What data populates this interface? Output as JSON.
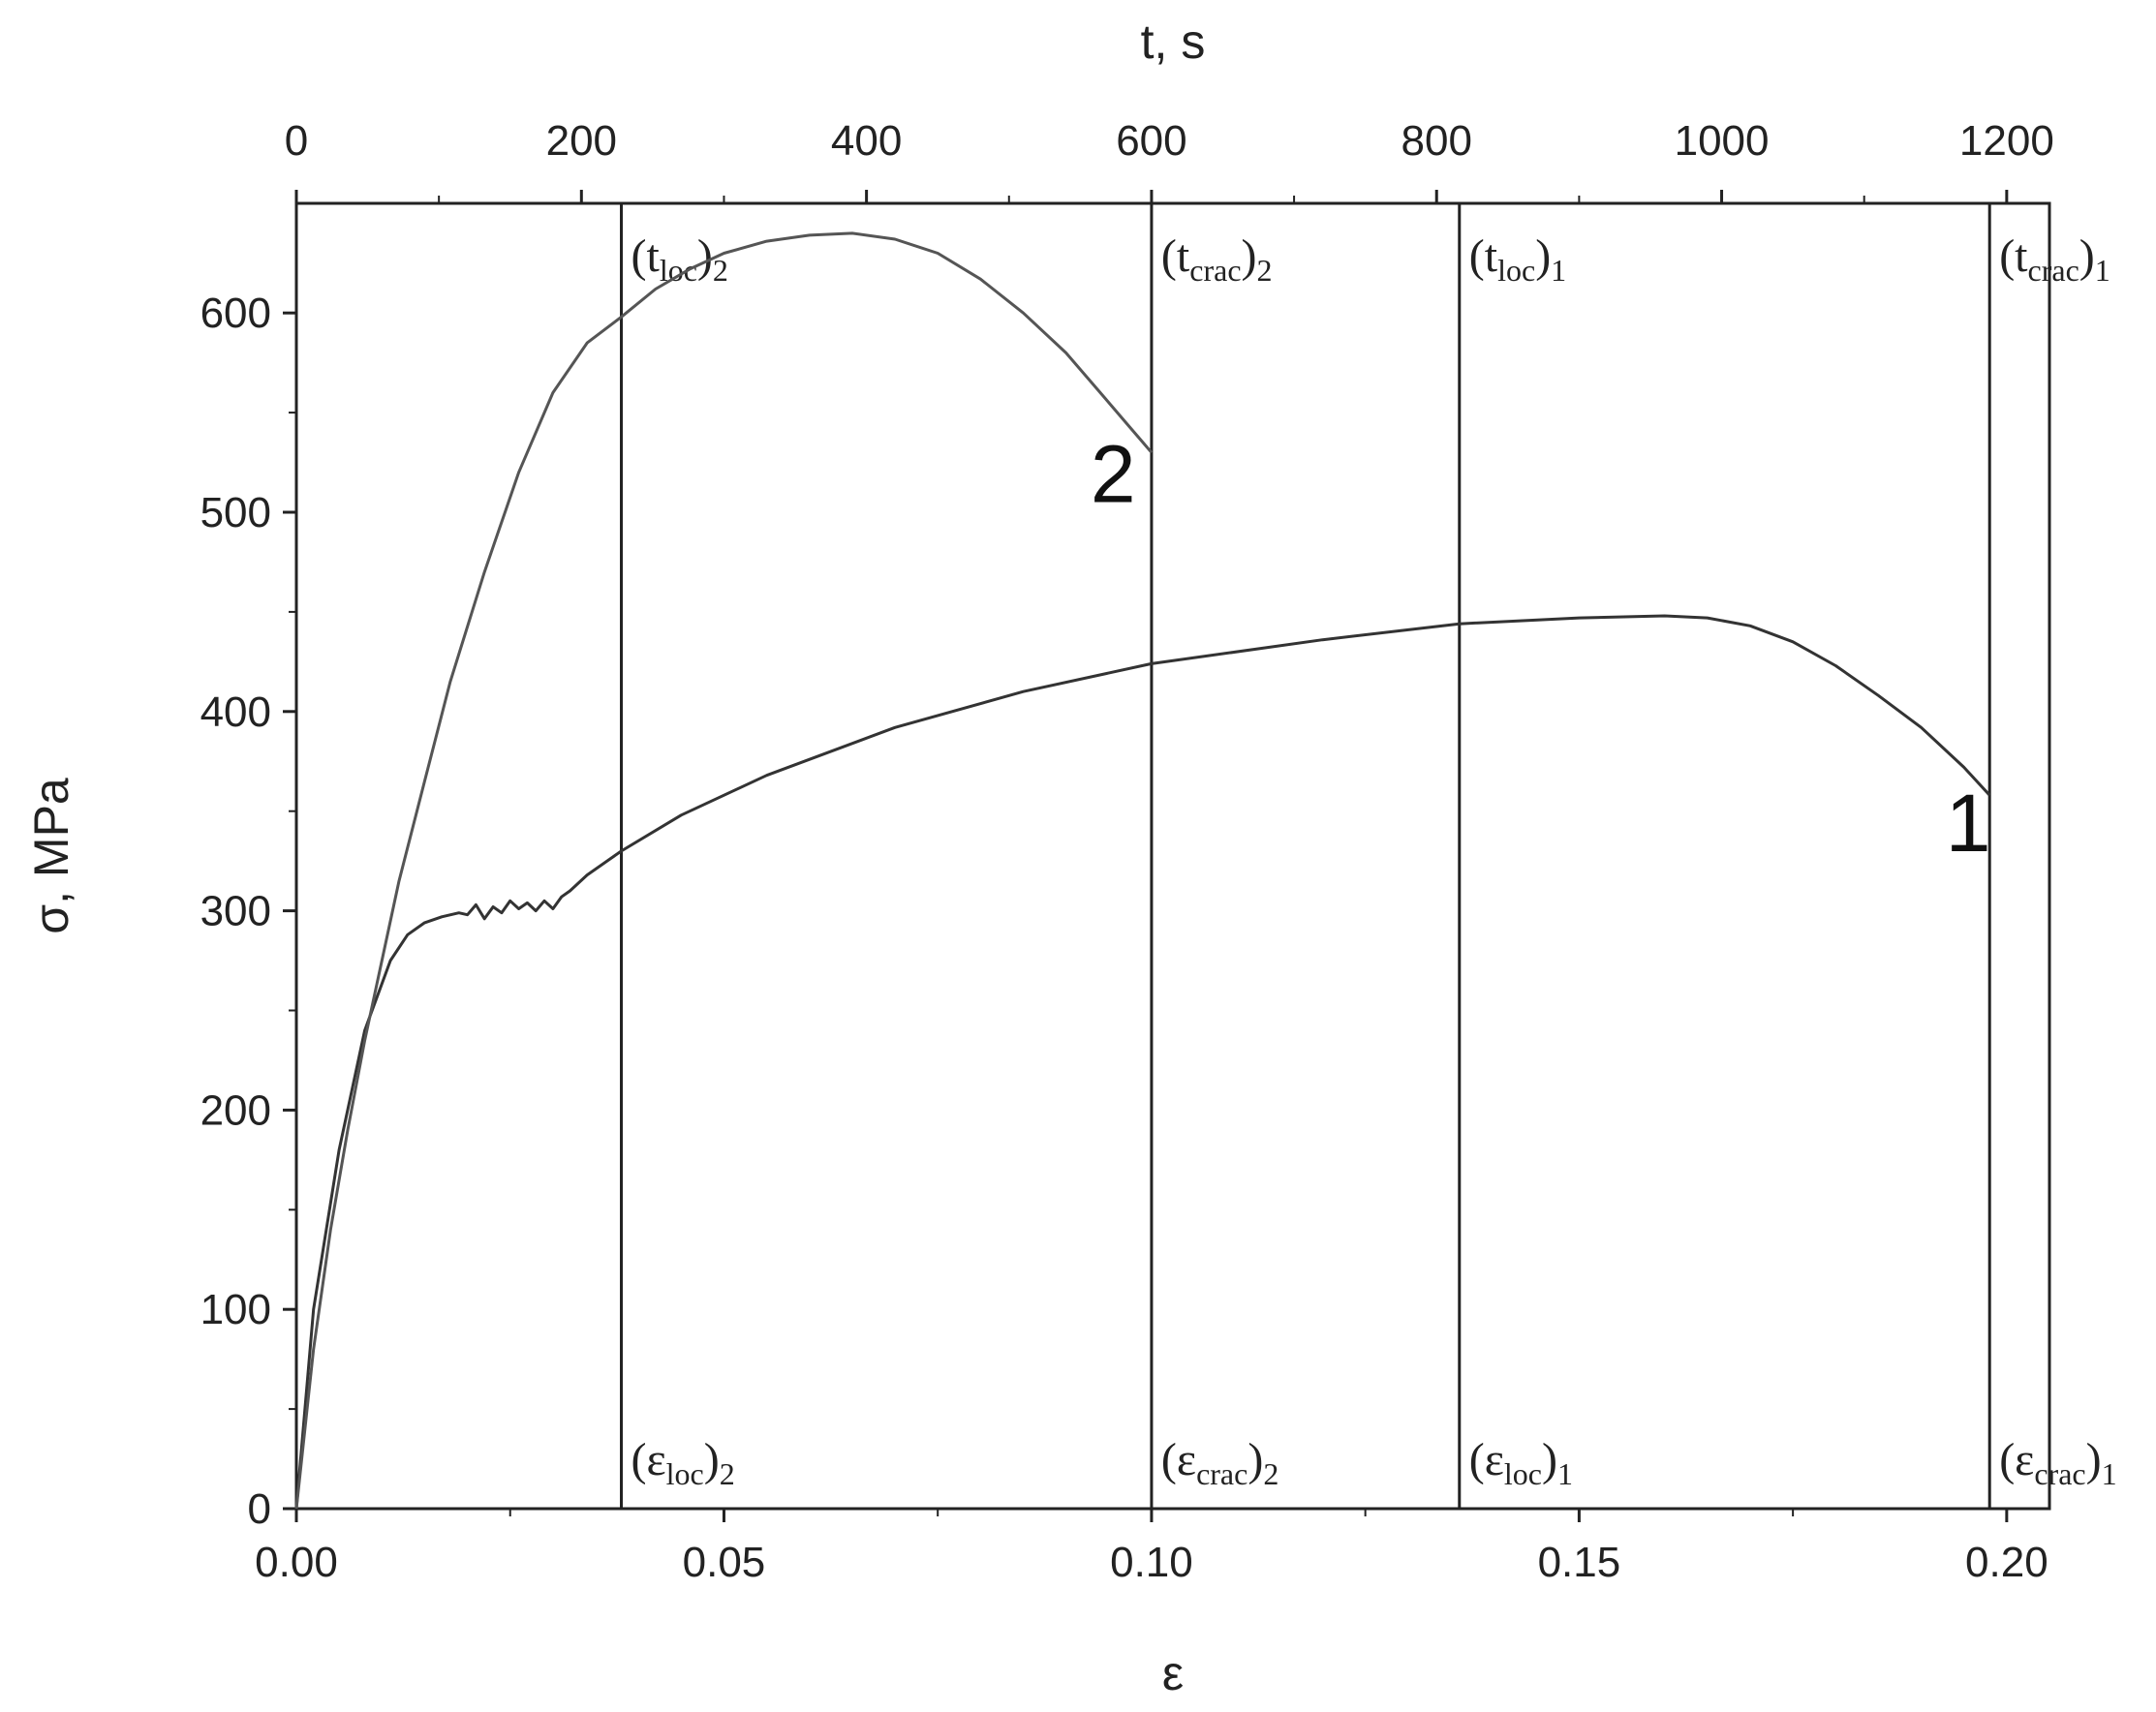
{
  "chart_data": {
    "type": "line",
    "xlabel": "ε",
    "ylabel": "σ, MPa",
    "x2label": "t, s",
    "xlim": [
      0,
      0.205
    ],
    "ylim": [
      0,
      655
    ],
    "x2lim": [
      0,
      1230
    ],
    "x_ticks": [
      0.0,
      0.05,
      0.1,
      0.15,
      0.2
    ],
    "x_tick_labels": [
      "0.00",
      "0.05",
      "0.10",
      "0.15",
      "0.20"
    ],
    "y_ticks": [
      0,
      100,
      200,
      300,
      400,
      500,
      600
    ],
    "y_tick_labels": [
      "0",
      "100",
      "200",
      "300",
      "400",
      "500",
      "600"
    ],
    "x2_ticks": [
      0,
      200,
      400,
      600,
      800,
      1000,
      1200
    ],
    "x2_tick_labels": [
      "0",
      "200",
      "400",
      "600",
      "800",
      "1000",
      "1200"
    ],
    "grid": false,
    "series": [
      {
        "label": "1",
        "x": [
          0,
          0.002,
          0.005,
          0.008,
          0.011,
          0.013,
          0.015,
          0.017,
          0.019,
          0.02,
          0.021,
          0.022,
          0.023,
          0.024,
          0.025,
          0.026,
          0.027,
          0.028,
          0.029,
          0.03,
          0.031,
          0.032,
          0.034,
          0.038,
          0.045,
          0.055,
          0.07,
          0.085,
          0.1,
          0.12,
          0.136,
          0.15,
          0.16,
          0.165,
          0.17,
          0.175,
          0.18,
          0.185,
          0.19,
          0.195,
          0.198
        ],
        "y": [
          0,
          100,
          180,
          240,
          275,
          288,
          294,
          297,
          299,
          298,
          303,
          296,
          302,
          299,
          305,
          301,
          304,
          300,
          305,
          301,
          307,
          310,
          318,
          330,
          348,
          368,
          392,
          410,
          424,
          436,
          444,
          447,
          448,
          447,
          443,
          435,
          423,
          408,
          392,
          372,
          358
        ]
      },
      {
        "label": "2",
        "x": [
          0,
          0.002,
          0.004,
          0.006,
          0.008,
          0.01,
          0.012,
          0.015,
          0.018,
          0.022,
          0.026,
          0.03,
          0.034,
          0.038,
          0.042,
          0.046,
          0.05,
          0.055,
          0.06,
          0.065,
          0.07,
          0.075,
          0.08,
          0.085,
          0.09,
          0.094,
          0.097,
          0.099,
          0.1
        ],
        "y": [
          0,
          80,
          140,
          190,
          235,
          275,
          315,
          365,
          415,
          470,
          520,
          560,
          585,
          598,
          612,
          622,
          630,
          636,
          639,
          640,
          637,
          630,
          617,
          600,
          580,
          560,
          545,
          535,
          530
        ]
      }
    ],
    "markers": [
      {
        "top_main": "(t",
        "top_sub": "loc",
        "top_idx": ")",
        "top_idx_sub": "2",
        "bottom_main": "(ε",
        "bottom_sub": "loc",
        "bottom_idx": ")",
        "bottom_idx_sub": "2",
        "x": 0.038
      },
      {
        "top_main": "(t",
        "top_sub": "crac",
        "top_idx": ")",
        "top_idx_sub": "2",
        "bottom_main": "(ε",
        "bottom_sub": "crac",
        "bottom_idx": ")",
        "bottom_idx_sub": "2",
        "x": 0.1
      },
      {
        "top_main": "(t",
        "top_sub": "loc",
        "top_idx": ")",
        "top_idx_sub": "1",
        "bottom_main": "(ε",
        "bottom_sub": "loc",
        "bottom_idx": ")",
        "bottom_idx_sub": "1",
        "x": 0.136
      },
      {
        "top_main": "(t",
        "top_sub": "crac",
        "top_idx": ")",
        "top_idx_sub": "1",
        "bottom_main": "(ε",
        "bottom_sub": "crac",
        "bottom_idx": ")",
        "bottom_idx_sub": "1",
        "x": 0.198
      }
    ],
    "curve_labels": [
      {
        "text": "2",
        "x": 0.0955,
        "y": 505
      },
      {
        "text": "1",
        "x": 0.1955,
        "y": 330
      }
    ]
  }
}
